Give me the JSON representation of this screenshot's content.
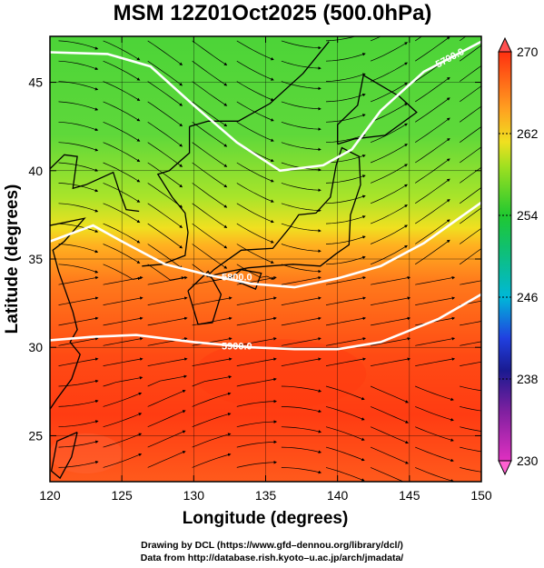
{
  "chart_data": {
    "type": "heatmap",
    "title": "MSM 12Z01Oct2025 (500.0hPa)",
    "xlabel": "Longitude (degrees)",
    "ylabel": "Latitude  (degrees)",
    "xlim": [
      120,
      150
    ],
    "ylim": [
      22.4,
      47.6
    ],
    "x_ticks": [
      "120",
      "125",
      "130",
      "135",
      "140",
      "145",
      "150"
    ],
    "y_ticks": [
      "25",
      "30",
      "35",
      "40",
      "45"
    ],
    "colorbar": {
      "range": [
        230,
        270
      ],
      "ticks": [
        "230",
        "238",
        "246",
        "254",
        "262",
        "270"
      ]
    },
    "field": "temperature (K), shaded",
    "overlays": [
      "streamlines (wind)",
      "geopotential height contours"
    ],
    "contours": [
      {
        "label": "5700.0",
        "points": [
          [
            120,
            46.7
          ],
          [
            124,
            46.6
          ],
          [
            127,
            45.9
          ],
          [
            130,
            43.7
          ],
          [
            133,
            41.6
          ],
          [
            136,
            40.0
          ],
          [
            139,
            40.3
          ],
          [
            141,
            41.2
          ],
          [
            143,
            43.4
          ],
          [
            146,
            45.6
          ],
          [
            150,
            47.3
          ]
        ]
      },
      {
        "label": "5800.0",
        "points": [
          [
            120,
            36.0
          ],
          [
            123,
            36.9
          ],
          [
            125,
            36.0
          ],
          [
            128,
            34.7
          ],
          [
            131,
            34.1
          ],
          [
            134,
            33.6
          ],
          [
            137,
            33.4
          ],
          [
            140,
            33.9
          ],
          [
            143,
            34.6
          ],
          [
            146,
            35.9
          ],
          [
            150,
            38.2
          ]
        ]
      },
      {
        "label": "5900.0",
        "points": [
          [
            120,
            30.4
          ],
          [
            123,
            30.6
          ],
          [
            126,
            30.7
          ],
          [
            130,
            30.3
          ],
          [
            134,
            30.0
          ],
          [
            137,
            29.9
          ],
          [
            140,
            29.9
          ],
          [
            143,
            30.3
          ],
          [
            147,
            31.6
          ],
          [
            150,
            33.0
          ]
        ]
      }
    ],
    "grid": true,
    "colorbar_position": "right"
  },
  "credits": {
    "line1": "Drawing by DCL (https://www.gfd–dennou.org/library/dcl/)",
    "line2": "Data from http://database.rish.kyoto–u.ac.jp/arch/jmadata/"
  },
  "colors": {
    "cold": "#e040e0",
    "cool": "#1a1aa0",
    "mid": "#00c0c0",
    "green": "#20c030",
    "yellow": "#e8e820",
    "warm": "#ff6020",
    "hot": "#ff2e10"
  }
}
